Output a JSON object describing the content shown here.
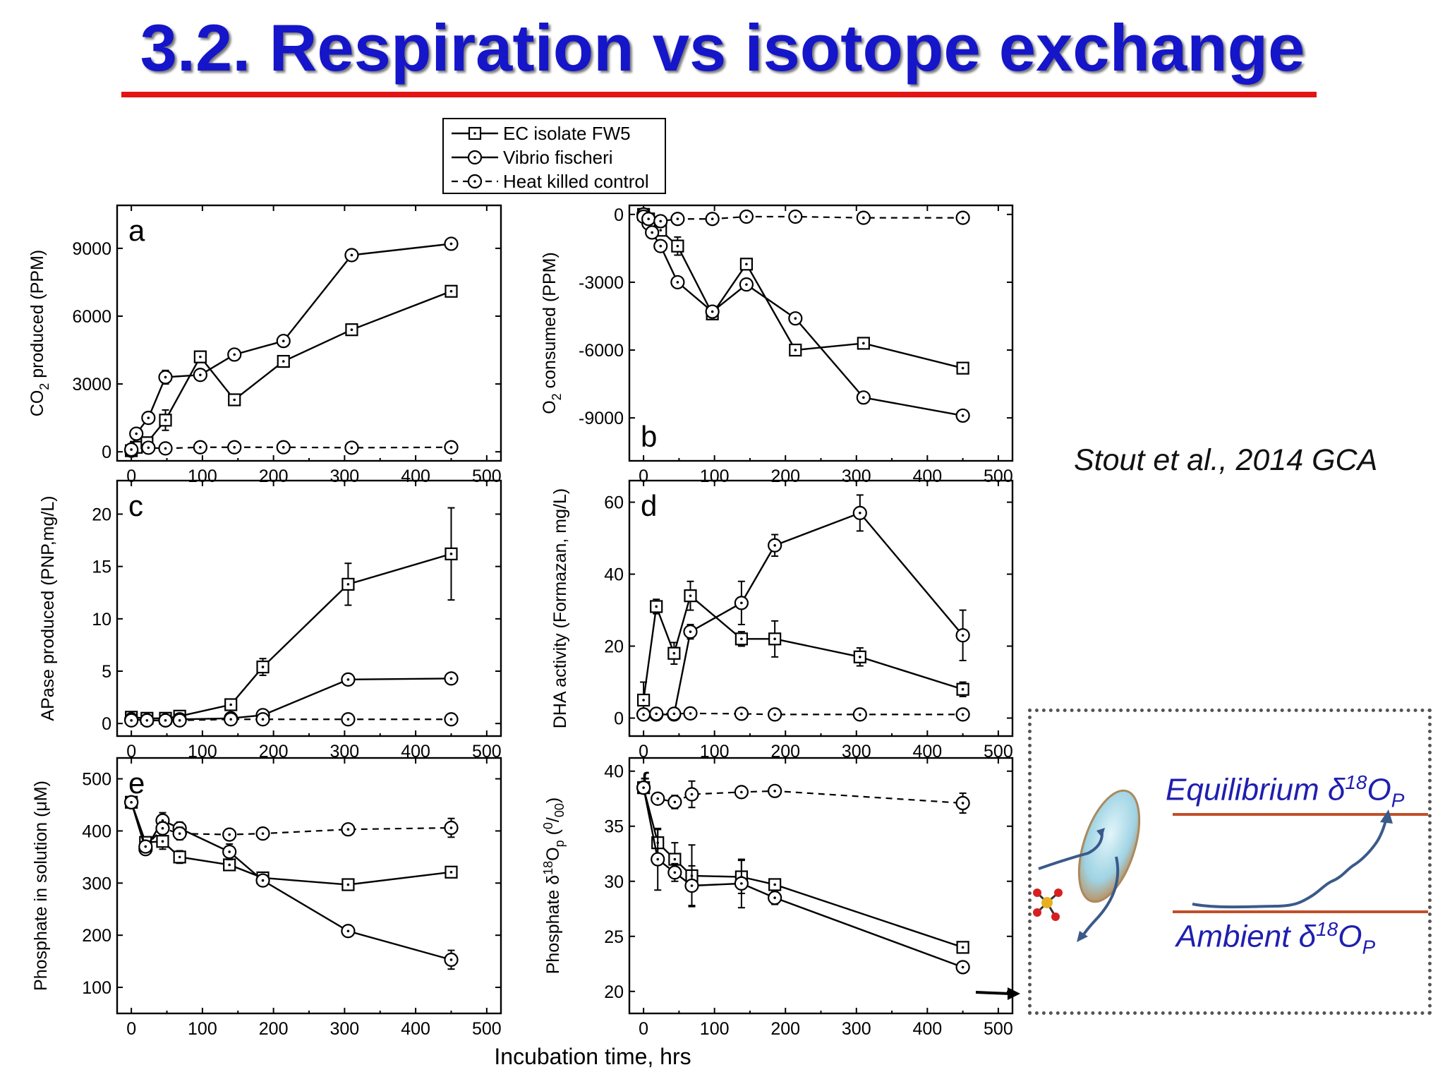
{
  "slide": {
    "title": "3.2. Respiration vs isotope exchange",
    "citation": "Stout et al., 2014 GCA"
  },
  "colors": {
    "title": "#1515c9",
    "rule": "#e41414",
    "inset_lines": "#c0502a",
    "inset_text": "#1f1fb0",
    "arrow": "#3a5a8a",
    "cell": "#9fd3e3"
  },
  "legend": {
    "entries": [
      {
        "label": "EC isolate FW5",
        "marker": "square",
        "line": "solid"
      },
      {
        "label": "Vibrio fischeri",
        "marker": "circle",
        "line": "solid"
      },
      {
        "label": "Heat killed control",
        "marker": "circle",
        "line": "dashed"
      }
    ]
  },
  "x_axis_title": "Incubation time, hrs",
  "inset": {
    "equilibrium_label": "Equilibrium δ",
    "ambient_label": "Ambient δ",
    "sup": "18",
    "o_letter": "O",
    "sub": "P",
    "icons": [
      "cell-icon",
      "phosphate-molecule-icon",
      "exchange-arrow-icon",
      "trend-arrow-icon"
    ]
  },
  "chart_data": [
    {
      "type": "line",
      "panel": "a",
      "ylabel": "CO2 produced (PPM)",
      "xlim": [
        -20,
        520
      ],
      "ylim": [
        -400,
        10900
      ],
      "xticks": [
        0,
        100,
        200,
        300,
        400,
        500
      ],
      "yticks": [
        0,
        3000,
        6000,
        9000
      ],
      "letter_position": "top-left",
      "series": [
        {
          "name": "EC isolate FW5",
          "marker": "square",
          "dash": false,
          "x": [
            0,
            7,
            22,
            48,
            97,
            145,
            214,
            310,
            450
          ],
          "y": [
            50,
            200,
            400,
            1400,
            4200,
            2300,
            4000,
            5400,
            7100
          ],
          "err": [
            80,
            100,
            250,
            450,
            250,
            200,
            250,
            150,
            150
          ]
        },
        {
          "name": "Vibrio fischeri",
          "marker": "circle",
          "dash": false,
          "x": [
            0,
            7,
            24,
            48,
            97,
            145,
            214,
            310,
            450
          ],
          "y": [
            50,
            800,
            1500,
            3300,
            3400,
            4300,
            4900,
            8700,
            9200
          ],
          "err": [
            80,
            200,
            200,
            300,
            150,
            200,
            150,
            200,
            200
          ]
        },
        {
          "name": "Heat killed control",
          "marker": "circle",
          "dash": true,
          "x": [
            0,
            24,
            48,
            97,
            145,
            214,
            310,
            450
          ],
          "y": [
            100,
            180,
            150,
            200,
            200,
            200,
            180,
            200
          ],
          "err": [
            80,
            150,
            100,
            120,
            150,
            120,
            120,
            120
          ]
        }
      ]
    },
    {
      "type": "line",
      "panel": "b",
      "ylabel": "O2 consumed (PPM)",
      "xlim": [
        -20,
        520
      ],
      "ylim": [
        -10900,
        400
      ],
      "xticks": [
        0,
        100,
        200,
        300,
        400,
        500
      ],
      "yticks": [
        0,
        -3000,
        -6000,
        -9000
      ],
      "letter_position": "bottom-left",
      "series": [
        {
          "name": "EC isolate FW5",
          "marker": "square",
          "dash": false,
          "x": [
            0,
            7,
            12,
            24,
            48,
            97,
            145,
            214,
            310,
            450
          ],
          "y": [
            0,
            -200,
            -400,
            -700,
            -1400,
            -4400,
            -2200,
            -6000,
            -5700,
            -6800
          ],
          "err": [
            80,
            120,
            150,
            200,
            400,
            200,
            200,
            180,
            150,
            200
          ]
        },
        {
          "name": "Vibrio fischeri",
          "marker": "circle",
          "dash": false,
          "x": [
            0,
            7,
            12,
            24,
            48,
            97,
            145,
            214,
            310,
            450
          ],
          "y": [
            0,
            -400,
            -800,
            -1400,
            -3000,
            -4300,
            -3100,
            -4600,
            -8100,
            -8900
          ],
          "err": [
            80,
            150,
            200,
            200,
            200,
            200,
            200,
            200,
            200,
            200
          ]
        },
        {
          "name": "Heat killed control",
          "marker": "circle",
          "dash": true,
          "x": [
            0,
            7,
            24,
            48,
            97,
            145,
            214,
            310,
            450
          ],
          "y": [
            -100,
            -200,
            -300,
            -200,
            -200,
            -100,
            -100,
            -150,
            -150
          ],
          "err": [
            80,
            100,
            120,
            120,
            120,
            120,
            120,
            120,
            120
          ]
        }
      ]
    },
    {
      "type": "line",
      "panel": "c",
      "ylabel": "APase produced (PNP,mg/L)",
      "xlim": [
        -20,
        520
      ],
      "ylim": [
        -1.2,
        23.2
      ],
      "xticks": [
        0,
        100,
        200,
        300,
        400,
        500
      ],
      "yticks": [
        0,
        5,
        10,
        15,
        20
      ],
      "letter_position": "top-left",
      "series": [
        {
          "name": "EC isolate FW5",
          "marker": "square",
          "dash": false,
          "x": [
            0,
            22,
            48,
            68,
            140,
            185,
            305,
            450
          ],
          "y": [
            0.6,
            0.5,
            0.5,
            0.7,
            1.8,
            5.4,
            13.3,
            16.2
          ],
          "err": [
            0.2,
            0.2,
            0.2,
            0.2,
            0.3,
            0.8,
            2.0,
            4.4
          ]
        },
        {
          "name": "Vibrio fischeri",
          "marker": "circle",
          "dash": false,
          "x": [
            0,
            22,
            48,
            68,
            140,
            185,
            305,
            450
          ],
          "y": [
            0.4,
            0.3,
            0.3,
            0.4,
            0.5,
            0.8,
            4.2,
            4.3
          ],
          "err": [
            0.2,
            0.2,
            0.2,
            0.2,
            0.2,
            0.3,
            0.5,
            0.3
          ]
        },
        {
          "name": "Heat killed control",
          "marker": "circle",
          "dash": true,
          "x": [
            0,
            22,
            48,
            68,
            140,
            185,
            305,
            450
          ],
          "y": [
            0.3,
            0.3,
            0.3,
            0.3,
            0.4,
            0.4,
            0.4,
            0.4
          ],
          "err": [
            0.2,
            0.2,
            0.2,
            0.2,
            0.2,
            0.2,
            0.2,
            0.2
          ]
        }
      ]
    },
    {
      "type": "line",
      "panel": "d",
      "ylabel": "DHA activity (Formazan, mg/L)",
      "xlim": [
        -20,
        520
      ],
      "ylim": [
        -5,
        66
      ],
      "xticks": [
        0,
        100,
        200,
        300,
        400,
        500
      ],
      "yticks": [
        0,
        20,
        40,
        60
      ],
      "letter_position": "top-left",
      "series": [
        {
          "name": "EC isolate FW5",
          "marker": "square",
          "dash": false,
          "x": [
            0,
            18,
            43,
            66,
            138,
            185,
            305,
            450
          ],
          "y": [
            5,
            31,
            18,
            34,
            22,
            22,
            17,
            8
          ],
          "err": [
            5,
            2,
            3,
            4,
            2,
            5,
            2.5,
            2
          ]
        },
        {
          "name": "Vibrio fischeri",
          "marker": "circle",
          "dash": false,
          "x": [
            0,
            18,
            43,
            66,
            138,
            185,
            305,
            450
          ],
          "y": [
            1,
            1,
            1,
            24,
            32,
            48,
            57,
            23
          ],
          "err": [
            1,
            1,
            1,
            2,
            6,
            3,
            5,
            7
          ]
        },
        {
          "name": "Heat killed control",
          "marker": "circle",
          "dash": true,
          "x": [
            0,
            18,
            43,
            66,
            138,
            185,
            305,
            450
          ],
          "y": [
            1,
            1.2,
            1.2,
            1.3,
            1.2,
            1,
            1,
            1
          ],
          "err": [
            0.8,
            0.8,
            0.8,
            0.8,
            0.8,
            0.8,
            0.8,
            0.8
          ]
        }
      ]
    },
    {
      "type": "line",
      "panel": "e",
      "ylabel": "Phosphate in solution (μM)",
      "xlim": [
        -20,
        520
      ],
      "ylim": [
        50,
        540
      ],
      "xticks": [
        0,
        100,
        200,
        300,
        400,
        500
      ],
      "yticks": [
        100,
        200,
        300,
        400,
        500
      ],
      "letter_position": "top-left",
      "series": [
        {
          "name": "EC isolate FW5",
          "marker": "square",
          "dash": false,
          "x": [
            0,
            20,
            44,
            68,
            138,
            185,
            305,
            450
          ],
          "y": [
            455,
            378,
            380,
            350,
            335,
            310,
            297,
            321
          ],
          "err": [
            10,
            10,
            15,
            12,
            10,
            8,
            10,
            8
          ]
        },
        {
          "name": "Vibrio fischeri",
          "marker": "circle",
          "dash": false,
          "x": [
            0,
            20,
            44,
            68,
            138,
            185,
            305,
            450
          ],
          "y": [
            455,
            365,
            420,
            405,
            360,
            305,
            208,
            153
          ],
          "err": [
            10,
            10,
            15,
            12,
            15,
            10,
            10,
            18
          ]
        },
        {
          "name": "Heat killed control",
          "marker": "circle",
          "dash": true,
          "x": [
            0,
            20,
            44,
            68,
            138,
            185,
            305,
            450
          ],
          "y": [
            455,
            370,
            405,
            395,
            393,
            395,
            403,
            406
          ],
          "err": [
            10,
            10,
            12,
            12,
            10,
            10,
            8,
            18
          ]
        }
      ]
    },
    {
      "type": "line",
      "panel": "f",
      "ylabel": "Phosphate δ18Op (0/00)",
      "xlim": [
        -20,
        520
      ],
      "ylim": [
        18,
        41.2
      ],
      "xticks": [
        0,
        100,
        200,
        300,
        400,
        500
      ],
      "yticks": [
        20,
        25,
        30,
        35,
        40
      ],
      "letter_position": "top-left",
      "series": [
        {
          "name": "EC isolate FW5",
          "marker": "square",
          "dash": false,
          "x": [
            0,
            20,
            44,
            68,
            138,
            185,
            450
          ],
          "y": [
            38.5,
            33.5,
            32,
            30.5,
            30.4,
            29.7,
            24
          ],
          "err": [
            0.4,
            1.2,
            1.5,
            2.8,
            1.5,
            0.5,
            0.5
          ]
        },
        {
          "name": "Vibrio fischeri",
          "marker": "circle",
          "dash": false,
          "x": [
            0,
            20,
            44,
            68,
            138,
            185,
            450
          ],
          "y": [
            38.5,
            32,
            30.8,
            29.6,
            29.8,
            28.5,
            22.2
          ],
          "err": [
            0.4,
            2.8,
            0.8,
            1.8,
            2.2,
            0.6,
            0.5
          ]
        },
        {
          "name": "Heat killed control",
          "marker": "circle",
          "dash": true,
          "x": [
            0,
            20,
            44,
            68,
            138,
            185,
            450
          ],
          "y": [
            38.5,
            37.5,
            37.2,
            37.9,
            38.1,
            38.2,
            37.1
          ],
          "err": [
            0.4,
            0.4,
            0.6,
            1.2,
            0.5,
            0.4,
            0.9
          ]
        }
      ]
    }
  ]
}
